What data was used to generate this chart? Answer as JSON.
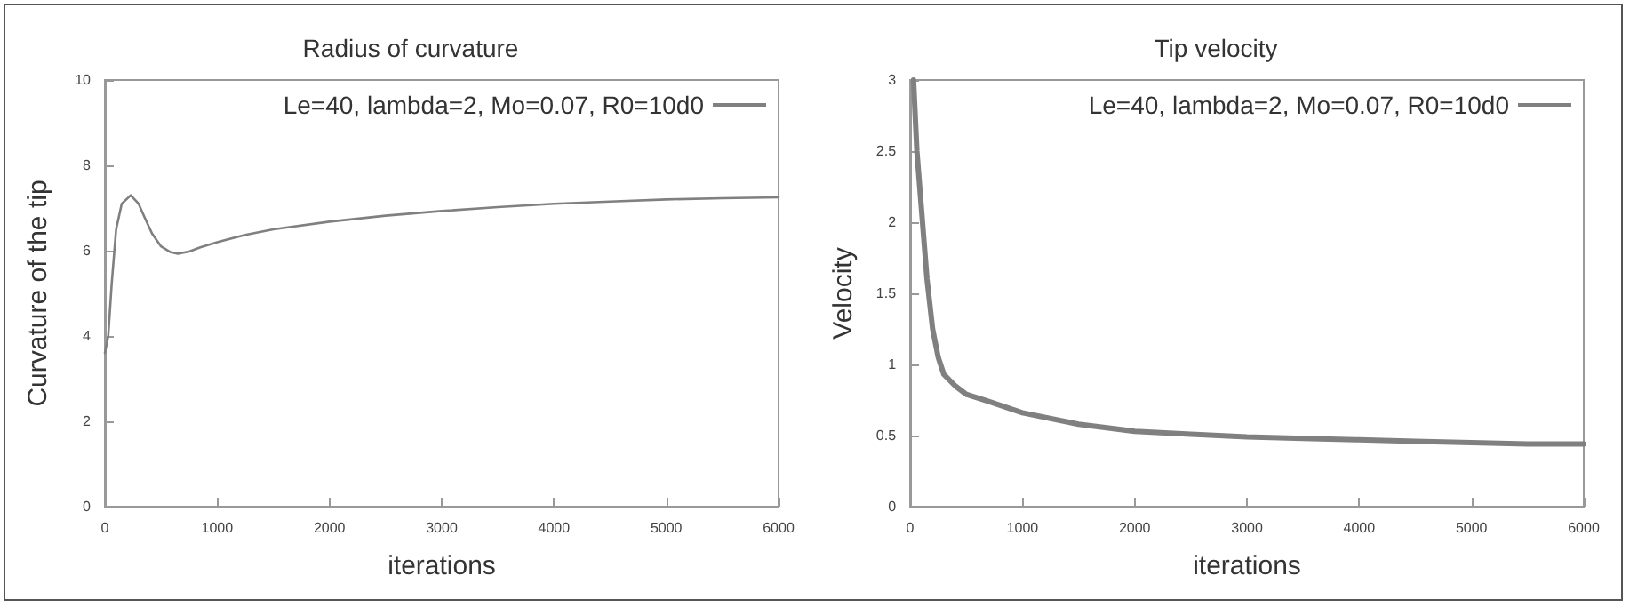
{
  "chart_data": [
    {
      "type": "line",
      "title": "Radius of curvature",
      "xlabel": "iterations",
      "ylabel": "Curvature of the tip",
      "xlim": [
        0,
        6000
      ],
      "xticks": [
        0,
        1000,
        2000,
        3000,
        4000,
        5000,
        6000
      ],
      "ylim": [
        0,
        10
      ],
      "yticks": [
        0,
        2,
        4,
        6,
        8,
        10
      ],
      "grid": false,
      "legend": "top right",
      "marker": "none",
      "line_style": "solid",
      "x": [
        0,
        30,
        60,
        100,
        150,
        230,
        300,
        350,
        420,
        500,
        580,
        650,
        750,
        850,
        1000,
        1250,
        1500,
        2000,
        2500,
        3000,
        3500,
        4000,
        4500,
        5000,
        5500,
        6000
      ],
      "series": [
        {
          "name": "Le=40, lambda=2, Mo=0.07, R0=10d0",
          "color": "#808080",
          "values": [
            3.6,
            4.0,
            5.2,
            6.5,
            7.1,
            7.3,
            7.1,
            6.8,
            6.4,
            6.1,
            5.97,
            5.93,
            5.98,
            6.08,
            6.2,
            6.37,
            6.5,
            6.68,
            6.82,
            6.93,
            7.02,
            7.1,
            7.15,
            7.2,
            7.23,
            7.25
          ]
        }
      ]
    },
    {
      "type": "line",
      "title": "Tip velocity",
      "xlabel": "iterations",
      "ylabel": "Velocity",
      "xlim": [
        0,
        6000
      ],
      "xticks": [
        0,
        1000,
        2000,
        3000,
        4000,
        5000,
        6000
      ],
      "ylim": [
        0,
        3
      ],
      "yticks": [
        0,
        0.5,
        1,
        1.5,
        2,
        2.5,
        3
      ],
      "grid": false,
      "legend": "top right",
      "marker": "none",
      "line_style": "solid",
      "x": [
        30,
        60,
        100,
        150,
        200,
        250,
        300,
        400,
        500,
        700,
        1000,
        1500,
        2000,
        2500,
        3000,
        3500,
        4000,
        4500,
        5000,
        5500,
        6000
      ],
      "series": [
        {
          "name": "Le=40, lambda=2, Mo=0.07, R0=10d0",
          "color": "#808080",
          "values": [
            3.0,
            2.5,
            2.1,
            1.6,
            1.25,
            1.05,
            0.93,
            0.85,
            0.79,
            0.74,
            0.66,
            0.58,
            0.53,
            0.51,
            0.49,
            0.48,
            0.47,
            0.46,
            0.45,
            0.44,
            0.44
          ]
        }
      ]
    }
  ]
}
